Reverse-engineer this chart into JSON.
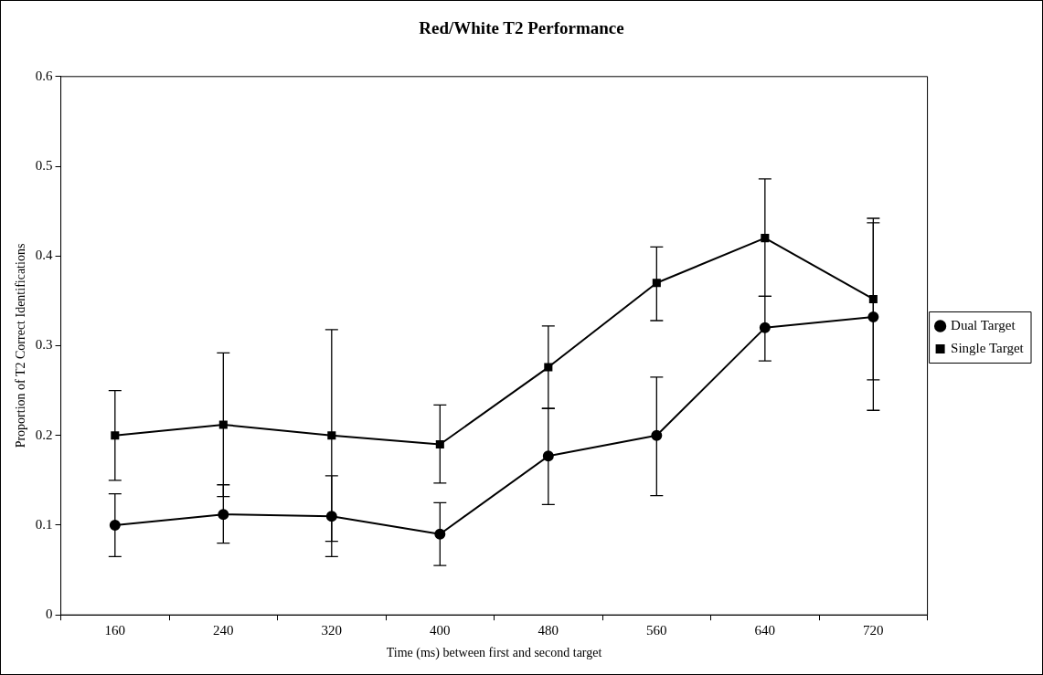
{
  "chart_data": {
    "type": "line",
    "title": "Red/White T2 Performance",
    "xlabel": "Time (ms) between first and second target",
    "ylabel": "Proportion of T2 Correct Identifications",
    "categories": [
      "160",
      "240",
      "320",
      "400",
      "480",
      "560",
      "640",
      "720"
    ],
    "series": [
      {
        "name": "Dual Target",
        "color": "#000000",
        "marker": "circle",
        "values": [
          0.1,
          0.112,
          0.11,
          0.09,
          0.177,
          0.2,
          0.32,
          0.332
        ],
        "errors": [
          [
            0.065,
            0.135
          ],
          [
            0.08,
            0.145
          ],
          [
            0.065,
            0.155
          ],
          [
            0.055,
            0.125
          ],
          [
            0.123,
            0.23
          ],
          [
            0.133,
            0.265
          ],
          [
            0.283,
            0.355
          ],
          [
            0.228,
            0.437
          ]
        ]
      },
      {
        "name": "Single Target",
        "color": "#000000",
        "marker": "square",
        "values": [
          0.2,
          0.212,
          0.2,
          0.19,
          0.276,
          0.37,
          0.42,
          0.352
        ],
        "errors": [
          [
            0.15,
            0.25
          ],
          [
            0.132,
            0.292
          ],
          [
            0.082,
            0.318
          ],
          [
            0.147,
            0.234
          ],
          [
            0.23,
            0.322
          ],
          [
            0.328,
            0.41
          ],
          [
            0.355,
            0.486
          ],
          [
            0.262,
            0.442
          ]
        ]
      }
    ],
    "ylim": [
      0,
      0.6
    ],
    "yticks": [
      0,
      0.1,
      0.2,
      0.3,
      0.4,
      0.5,
      0.6
    ],
    "grid": false,
    "legend": "right",
    "line_style": "solid"
  }
}
